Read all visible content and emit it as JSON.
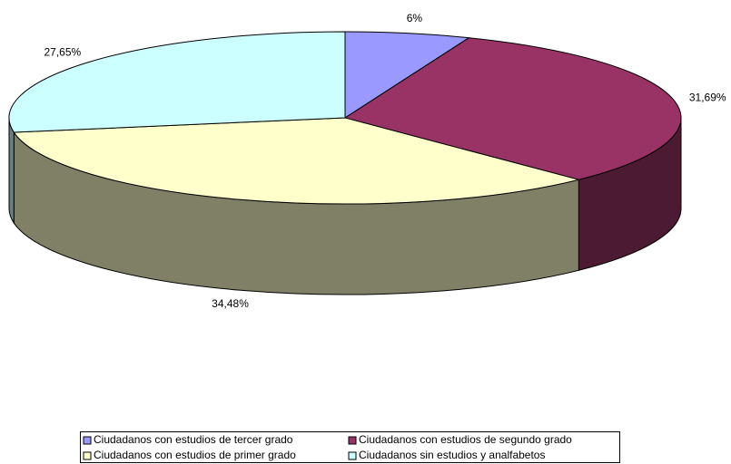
{
  "chart_data": {
    "type": "pie3d",
    "categories": [
      "Ciudadanos con estudios de tercer grado",
      "Ciudadanos con estudios de segundo grado",
      "Ciudadanos con estudios de primer grado",
      "Ciudadanos sin estudios y analfabetos"
    ],
    "values": [
      6,
      31.69,
      34.48,
      27.65
    ],
    "value_labels": [
      "6%",
      "31,69%",
      "34,48%",
      "27,65%"
    ],
    "colors": [
      "#9999ff",
      "#993366",
      "#ffffcc",
      "#ccffff"
    ],
    "side_colors": [
      "#4d4d80",
      "#4d1a33",
      "#808066",
      "#668080"
    ],
    "legend": "bottom"
  }
}
